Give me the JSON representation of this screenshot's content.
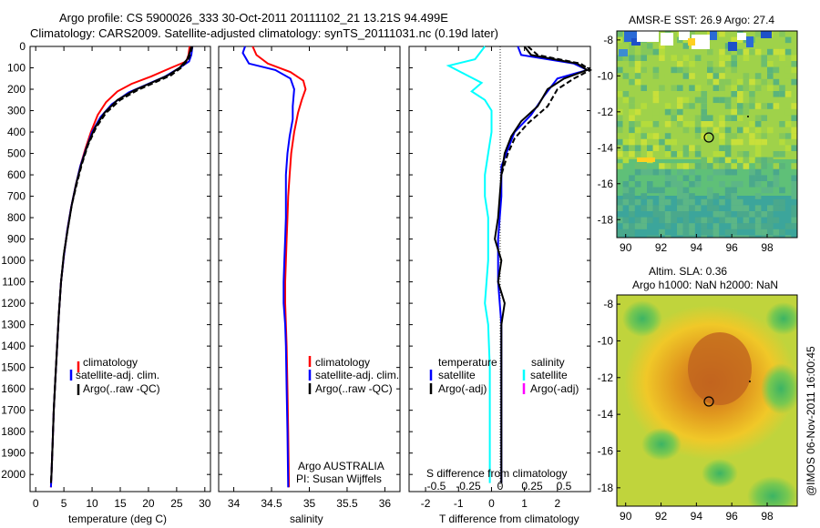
{
  "title": {
    "line1": "Argo profile: CS 5900026_333 30-Oct-2011 20111102_21 13.21S 94.499E",
    "line2": "Climatology: CARS2009. Satellite-adjusted climatology: synTS_20111031.nc (0.19d later)"
  },
  "side_text": "@IMOS 06-Nov-2011 16:00:45",
  "colors": {
    "climatology": "#ff0000",
    "satellite": "#0000ff",
    "argo": "#000000",
    "sal_satellite": "#00ffff",
    "sal_argo": "#ff00ff"
  },
  "chart_data": [
    {
      "type": "line",
      "id": "temperature",
      "xlabel": "temperature (deg C)",
      "ylabel": "",
      "xlim": [
        -1,
        31
      ],
      "ylim": [
        2080,
        0
      ],
      "xticks": [
        "0",
        "5",
        "10",
        "15",
        "20",
        "25",
        "30"
      ],
      "yticks": [
        "0",
        "100",
        "200",
        "300",
        "400",
        "500",
        "600",
        "700",
        "800",
        "900",
        "1000",
        "1100",
        "1200",
        "1300",
        "1400",
        "1500",
        "1600",
        "1700",
        "1800",
        "1900",
        "2000"
      ],
      "legend": [
        "climatology",
        "satellite-adj. clim.",
        "Argo(..raw -QC)"
      ],
      "series": [
        {
          "name": "climatology",
          "color": "#ff0000",
          "points": [
            [
              27.3,
              0
            ],
            [
              27.1,
              40
            ],
            [
              26.7,
              70
            ],
            [
              24.0,
              100
            ],
            [
              20.5,
              140
            ],
            [
              17.0,
              175
            ],
            [
              14.5,
              210
            ],
            [
              12.5,
              260
            ],
            [
              11.0,
              320
            ],
            [
              9.8,
              400
            ],
            [
              8.8,
              480
            ],
            [
              7.9,
              560
            ],
            [
              7.1,
              650
            ],
            [
              6.3,
              750
            ],
            [
              5.6,
              860
            ],
            [
              5.0,
              980
            ],
            [
              4.5,
              1100
            ],
            [
              4.1,
              1250
            ],
            [
              3.8,
              1400
            ],
            [
              3.5,
              1550
            ],
            [
              3.2,
              1700
            ],
            [
              3.0,
              1850
            ],
            [
              2.8,
              2000
            ],
            [
              2.7,
              2060
            ]
          ]
        },
        {
          "name": "satellite-adj. clim.",
          "color": "#0000ff",
          "points": [
            [
              27.8,
              0
            ],
            [
              27.6,
              40
            ],
            [
              27.2,
              70
            ],
            [
              25.5,
              100
            ],
            [
              23.0,
              140
            ],
            [
              20.0,
              175
            ],
            [
              16.5,
              215
            ],
            [
              13.5,
              270
            ],
            [
              11.5,
              330
            ],
            [
              10.0,
              400
            ],
            [
              8.9,
              480
            ],
            [
              7.9,
              560
            ],
            [
              7.1,
              650
            ],
            [
              6.3,
              750
            ],
            [
              5.6,
              860
            ],
            [
              5.0,
              980
            ],
            [
              4.5,
              1100
            ],
            [
              4.1,
              1250
            ],
            [
              3.8,
              1400
            ],
            [
              3.5,
              1550
            ],
            [
              3.2,
              1700
            ],
            [
              3.0,
              1850
            ],
            [
              2.8,
              2000
            ],
            [
              2.7,
              2060
            ]
          ]
        },
        {
          "name": "Argo(..raw -QC)",
          "color": "#000000",
          "points": [
            [
              27.6,
              0
            ],
            [
              27.3,
              30
            ],
            [
              26.9,
              60
            ],
            [
              25.5,
              100
            ],
            [
              23.5,
              135
            ],
            [
              20.5,
              170
            ],
            [
              17.5,
              205
            ],
            [
              14.5,
              250
            ],
            [
              12.2,
              310
            ],
            [
              10.5,
              380
            ],
            [
              9.2,
              460
            ],
            [
              8.1,
              550
            ],
            [
              7.2,
              640
            ],
            [
              6.4,
              740
            ],
            [
              5.7,
              850
            ],
            [
              5.0,
              970
            ],
            [
              4.5,
              1100
            ],
            [
              4.1,
              1250
            ],
            [
              3.8,
              1400
            ],
            [
              3.5,
              1550
            ],
            [
              3.2,
              1700
            ],
            [
              3.0,
              1850
            ],
            [
              2.8,
              2000
            ],
            [
              2.7,
              2040
            ]
          ]
        },
        {
          "name": "Argo(..raw -QC) dashed",
          "color": "#000000",
          "dashed": true,
          "points": [
            [
              27.8,
              0
            ],
            [
              27.5,
              30
            ],
            [
              27.1,
              60
            ],
            [
              25.8,
              100
            ],
            [
              24.0,
              135
            ],
            [
              21.0,
              170
            ],
            [
              18.0,
              205
            ],
            [
              15.0,
              250
            ],
            [
              12.5,
              310
            ],
            [
              10.7,
              380
            ],
            [
              9.3,
              460
            ],
            [
              8.2,
              550
            ],
            [
              7.3,
              640
            ],
            [
              6.4,
              740
            ],
            [
              5.7,
              850
            ],
            [
              5.0,
              970
            ],
            [
              4.5,
              1100
            ],
            [
              4.1,
              1250
            ],
            [
              3.8,
              1400
            ],
            [
              3.5,
              1550
            ],
            [
              3.2,
              1700
            ],
            [
              3.0,
              1850
            ],
            [
              2.8,
              2000
            ],
            [
              2.7,
              2040
            ]
          ]
        }
      ]
    },
    {
      "type": "line",
      "id": "salinity",
      "xlabel": "salinity",
      "xlim": [
        33.8,
        36.2
      ],
      "ylim": [
        2080,
        0
      ],
      "xticks": [
        "34",
        "34.5",
        "35",
        "35.5",
        "36"
      ],
      "legend": [
        "climatology",
        "satellite-adj. clim.",
        "Argo(..raw -QC)"
      ],
      "annotation": [
        "Argo AUSTRALIA",
        "PI: Susan Wijffels"
      ],
      "series": [
        {
          "name": "climatology",
          "color": "#ff0000",
          "points": [
            [
              34.25,
              0
            ],
            [
              34.3,
              40
            ],
            [
              34.45,
              80
            ],
            [
              34.75,
              120
            ],
            [
              34.92,
              160
            ],
            [
              34.95,
              200
            ],
            [
              34.9,
              250
            ],
            [
              34.85,
              310
            ],
            [
              34.8,
              400
            ],
            [
              34.76,
              500
            ],
            [
              34.74,
              600
            ],
            [
              34.72,
              700
            ],
            [
              34.71,
              800
            ],
            [
              34.7,
              900
            ],
            [
              34.69,
              1000
            ],
            [
              34.68,
              1100
            ],
            [
              34.68,
              1200
            ],
            [
              34.69,
              1300
            ],
            [
              34.7,
              1400
            ],
            [
              34.71,
              1600
            ],
            [
              34.72,
              1800
            ],
            [
              34.73,
              2060
            ]
          ]
        },
        {
          "name": "satellite-adj. clim.",
          "color": "#0000ff",
          "points": [
            [
              34.15,
              0
            ],
            [
              34.12,
              30
            ],
            [
              34.2,
              80
            ],
            [
              34.55,
              110
            ],
            [
              34.75,
              150
            ],
            [
              34.8,
              200
            ],
            [
              34.78,
              280
            ],
            [
              34.78,
              340
            ],
            [
              34.74,
              420
            ],
            [
              34.71,
              500
            ],
            [
              34.69,
              600
            ],
            [
              34.69,
              700
            ],
            [
              34.69,
              800
            ],
            [
              34.68,
              900
            ],
            [
              34.67,
              1000
            ],
            [
              34.66,
              1100
            ],
            [
              34.66,
              1200
            ],
            [
              34.68,
              1300
            ],
            [
              34.69,
              1400
            ],
            [
              34.7,
              1600
            ],
            [
              34.71,
              1800
            ],
            [
              34.72,
              2060
            ]
          ]
        }
      ]
    },
    {
      "type": "line",
      "id": "differences",
      "xlabel": "T difference from climatology",
      "xlim_T": [
        -2.5,
        3
      ],
      "xticks_T": [
        "-2",
        "-1",
        "0",
        "1",
        "2"
      ],
      "xlabel_top": "S difference from climatology",
      "xticks_S": [
        "-0.5",
        "-0.25",
        "0",
        "0.25",
        "0.5"
      ],
      "ylim": [
        2080,
        0
      ],
      "legend": {
        "temperature_header": "temperature",
        "salinity_header": "salinity",
        "temperature": [
          "satellite",
          "Argo(-adj)"
        ],
        "salinity": [
          "satellite",
          "Argo(-adj)"
        ]
      },
      "series": [
        {
          "name": "temperature satellite",
          "color": "#0000ff",
          "points": [
            [
              0.8,
              0
            ],
            [
              0.9,
              40
            ],
            [
              2.5,
              80
            ],
            [
              2.9,
              110
            ],
            [
              2.0,
              150
            ],
            [
              1.6,
              230
            ],
            [
              1.2,
              320
            ],
            [
              0.7,
              400
            ],
            [
              0.5,
              480
            ],
            [
              0.3,
              560
            ],
            [
              0.3,
              700
            ],
            [
              0.2,
              900
            ],
            [
              0.2,
              1100
            ],
            [
              0.3,
              1300
            ],
            [
              0.3,
              1500
            ],
            [
              0.3,
              1700
            ],
            [
              0.3,
              1900
            ],
            [
              0.3,
              2040
            ]
          ]
        },
        {
          "name": "temperature Argo(-adj)",
          "color": "#000000",
          "points": [
            [
              1.0,
              0
            ],
            [
              1.2,
              40
            ],
            [
              2.6,
              80
            ],
            [
              2.9,
              110
            ],
            [
              2.2,
              150
            ],
            [
              1.7,
              200
            ],
            [
              1.4,
              280
            ],
            [
              0.9,
              350
            ],
            [
              0.6,
              420
            ],
            [
              0.4,
              500
            ],
            [
              0.3,
              600
            ],
            [
              0.2,
              800
            ],
            [
              0.1,
              900
            ],
            [
              0.3,
              1000
            ],
            [
              0.2,
              1100
            ],
            [
              0.4,
              1200
            ],
            [
              0.3,
              1300
            ],
            [
              0.3,
              1500
            ],
            [
              0.3,
              1700
            ],
            [
              0.3,
              1900
            ],
            [
              0.3,
              2040
            ]
          ]
        },
        {
          "name": "temperature Argo dashed",
          "color": "#000000",
          "dashed": true,
          "points": [
            [
              1.1,
              0
            ],
            [
              1.4,
              40
            ],
            [
              2.7,
              80
            ],
            [
              3.0,
              110
            ],
            [
              2.5,
              150
            ],
            [
              2.0,
              200
            ],
            [
              1.7,
              280
            ],
            [
              1.1,
              360
            ],
            [
              0.7,
              430
            ],
            [
              0.5,
              500
            ],
            [
              0.3,
              600
            ]
          ]
        },
        {
          "name": "salinity satellite",
          "color": "#00ffff",
          "points": [
            [
              -0.2,
              0
            ],
            [
              -0.5,
              60
            ],
            [
              -1.3,
              90
            ],
            [
              -0.8,
              130
            ],
            [
              -0.3,
              170
            ],
            [
              -0.6,
              210
            ],
            [
              -0.2,
              250
            ],
            [
              0.0,
              300
            ],
            [
              0.0,
              400
            ],
            [
              -0.1,
              500
            ],
            [
              -0.2,
              600
            ],
            [
              -0.2,
              700
            ],
            [
              -0.1,
              800
            ],
            [
              -0.1,
              900
            ],
            [
              -0.1,
              1000
            ],
            [
              -0.15,
              1100
            ],
            [
              -0.2,
              1200
            ],
            [
              -0.1,
              1300
            ],
            [
              -0.05,
              1500
            ],
            [
              -0.05,
              1700
            ],
            [
              -0.05,
              1900
            ],
            [
              -0.05,
              2040
            ]
          ]
        }
      ]
    },
    {
      "type": "heatmap",
      "id": "sst_map",
      "title": "AMSR-E SST: 26.9 Argo: 27.4",
      "xticks": [
        "90",
        "92",
        "94",
        "96",
        "98"
      ],
      "yticks": [
        "-8",
        "-10",
        "-12",
        "-14",
        "-16",
        "-18"
      ],
      "xlim": [
        89.5,
        99.7
      ],
      "ylim": [
        -19,
        -7.5
      ],
      "marker": [
        94.5,
        -13.2
      ]
    },
    {
      "type": "heatmap",
      "id": "sla_map",
      "title": "Altim. SLA: 0.36",
      "subtitle": "Argo h1000: NaN h2000: NaN",
      "xticks": [
        "90",
        "92",
        "94",
        "96",
        "98"
      ],
      "yticks": [
        "-8",
        "-10",
        "-12",
        "-14",
        "-16",
        "-18"
      ],
      "xlim": [
        89.5,
        99.7
      ],
      "ylim": [
        -19,
        -7.5
      ],
      "marker": [
        94.5,
        -13.2
      ]
    }
  ]
}
